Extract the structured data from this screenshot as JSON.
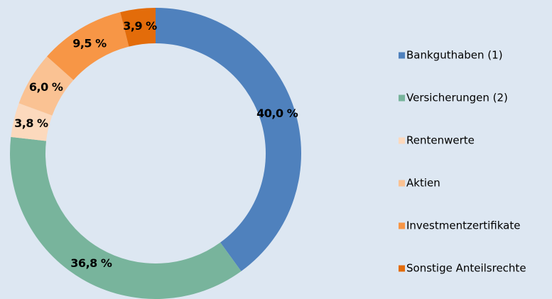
{
  "chart_data": {
    "type": "pie",
    "categories": [
      "Bankguthaben (1)",
      "Versicherungen (2)",
      "Rentenwerte",
      "Aktien",
      "Investmentzertifikate",
      "Sonstige Anteilsrechte"
    ],
    "values": [
      40.0,
      36.8,
      3.8,
      6.0,
      9.5,
      3.9
    ],
    "value_labels": [
      "40,0 %",
      "36,8 %",
      "3,8 %",
      "6,0 %",
      "9,5 %",
      "3,9 %"
    ],
    "colors": [
      "#4f81bd",
      "#78b49c",
      "#fcd9bd",
      "#fac293",
      "#f79646",
      "#e36c0a"
    ],
    "legend": "right"
  }
}
